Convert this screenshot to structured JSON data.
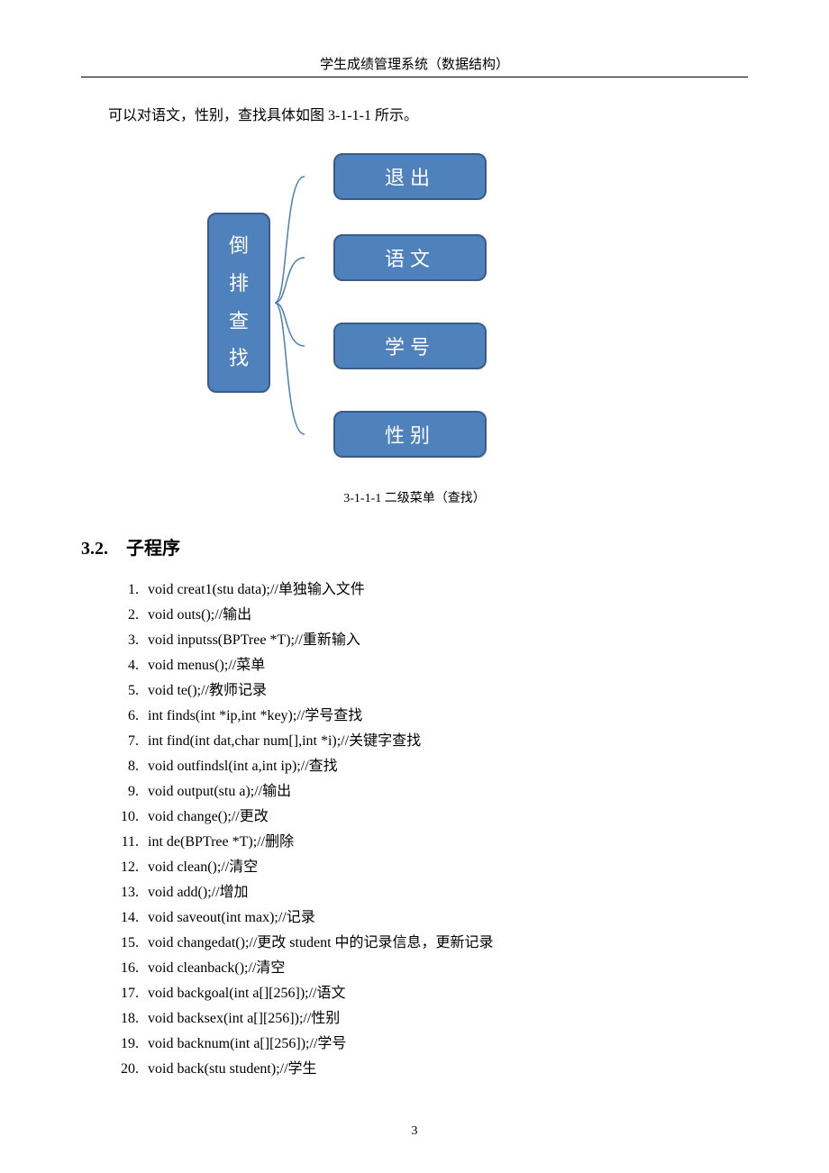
{
  "header": {
    "title": "学生成绩管理系统（数据结构）"
  },
  "intro": "可以对语文，性别，查找具体如图 3-1-1-1 所示。",
  "diagram": {
    "left_label": "倒排查找",
    "right_items": [
      "退出",
      "语文",
      "学号",
      "性别"
    ],
    "caption": "3-1-1-1    二级菜单（查找）",
    "box_fill": "#4f81bd",
    "box_stroke": "#385d8a",
    "box_text_color": "#ffffff",
    "right_box_width": 170,
    "right_box_height": 52,
    "left_box_width": 70,
    "left_box_height": 200,
    "border_radius": 10,
    "font_size": 22
  },
  "section": {
    "number": "3.2.",
    "title": "子程序"
  },
  "code_items": [
    "void creat1(stu data);//单独输入文件",
    "void outs();//输出",
    "void inputss(BPTree *T);//重新输入",
    "void menus();//菜单",
    "void te();//教师记录",
    "int finds(int *ip,int *key);//学号查找",
    "int find(int dat,char num[],int *i);//关键字查找",
    "void outfindsl(int a,int ip);//查找",
    "void output(stu a);//输出",
    "void change();//更改",
    "int de(BPTree *T);//删除",
    "void clean();//清空",
    "void add();//增加",
    "void saveout(int max);//记录",
    "void changedat();//更改 student 中的记录信息，更新记录",
    "void cleanback();//清空",
    "void backgoal(int a[][256]);//语文",
    " void backsex(int a[][256]);//性别",
    " void backnum(int a[][256]);//学号",
    "void back(stu student);//学生"
  ],
  "page_number": "3"
}
